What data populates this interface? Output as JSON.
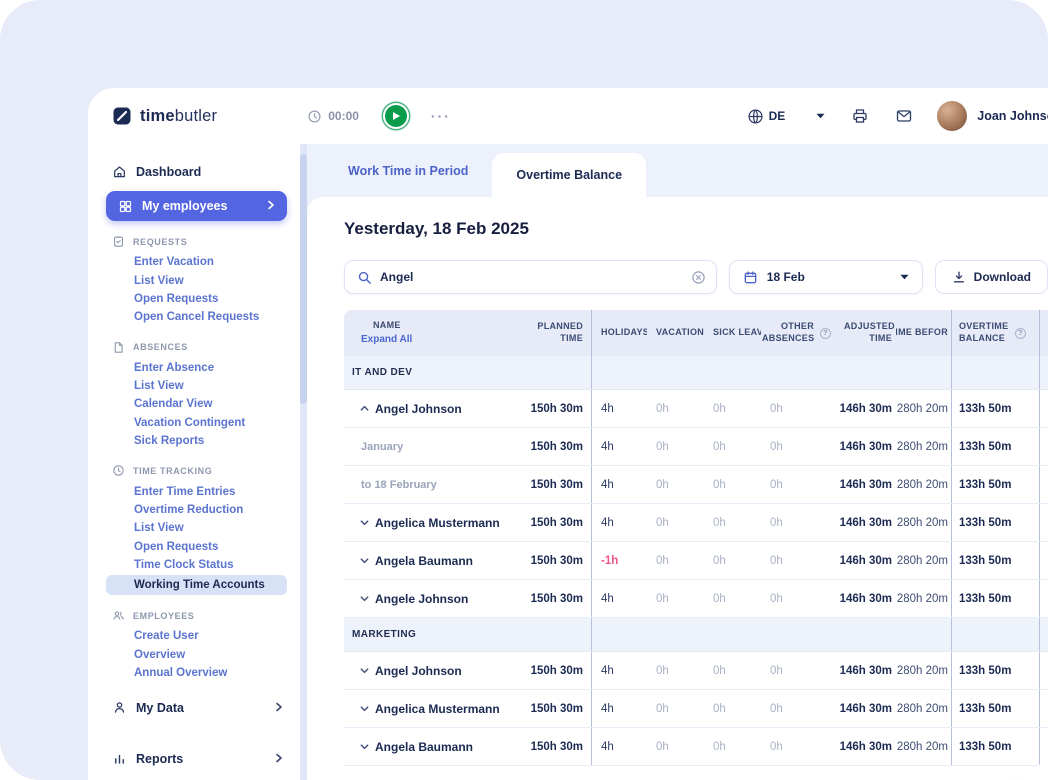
{
  "header": {
    "logo_bold": "time",
    "logo_light": "butler",
    "timer_value": "00:00",
    "more_menu": "···",
    "language": "DE",
    "user_name": "Joan Johnson"
  },
  "sidebar": {
    "dashboard": "Dashboard",
    "my_employees": "My employees",
    "sections": [
      {
        "title": "REQUESTS",
        "icon": "clipboard",
        "links": [
          "Enter Vacation",
          "List View",
          "Open Requests",
          "Open Cancel Requests"
        ]
      },
      {
        "title": "ABSENCES",
        "icon": "document",
        "links": [
          "Enter Absence",
          "List View",
          "Calendar View",
          "Vacation Contingent",
          "Sick Reports"
        ]
      },
      {
        "title": "TIME TRACKING",
        "icon": "clock",
        "links": [
          "Enter Time Entries",
          "Overtime Reduction",
          "List View",
          "Open Requests",
          "Time Clock Status",
          "Working Time Accounts"
        ],
        "active_link": "Working Time Accounts"
      },
      {
        "title": "EMPLOYEES",
        "icon": "people",
        "links": [
          "Create User",
          "Overview",
          "Annual Overview"
        ]
      }
    ],
    "my_data": "My Data",
    "reports": "Reports"
  },
  "tabs": [
    {
      "label": "Work Time in Period",
      "active": false
    },
    {
      "label": "Overtime Balance",
      "active": true
    }
  ],
  "content": {
    "page_title": "Yesterday, 18 Feb 2025",
    "search_value": "Angel",
    "date_filter_value": "18 Feb",
    "download_label": "Download"
  },
  "table": {
    "help_glyph": "?",
    "headers": {
      "name": "NAME",
      "expand_all": "Expand All",
      "planned": "PLANNED TIME",
      "holidays": "HOLIDAYS",
      "vacation": "VACATION",
      "sick": "SICK LEAVE",
      "other": "OTHER ABSENCES",
      "adjusted": "ADJUSTED TIME",
      "before": "TIME BEFOR",
      "overtime": "OVERTIME BALANCE"
    },
    "groups": [
      {
        "label": "IT AND DEV",
        "rows": [
          {
            "name": "Angel Johnson",
            "expanded": true,
            "values": {
              "planned": "150h 30m",
              "holidays": "4h",
              "vacation": "0h",
              "sick": "0h",
              "other": "0h",
              "adjusted": "146h 30m",
              "before": "280h 20m",
              "overtime": "133h 50m"
            },
            "children": [
              {
                "name": "January",
                "values": {
                  "planned": "150h 30m",
                  "holidays": "4h",
                  "vacation": "0h",
                  "sick": "0h",
                  "other": "0h",
                  "adjusted": "146h 30m",
                  "before": "280h 20m",
                  "overtime": "133h 50m"
                }
              },
              {
                "name": "to 18 February",
                "values": {
                  "planned": "150h 30m",
                  "holidays": "4h",
                  "vacation": "0h",
                  "sick": "0h",
                  "other": "0h",
                  "adjusted": "146h 30m",
                  "before": "280h 20m",
                  "overtime": "133h 50m"
                }
              }
            ]
          },
          {
            "name": "Angelica Mustermann",
            "expanded": false,
            "values": {
              "planned": "150h 30m",
              "holidays": "4h",
              "vacation": "0h",
              "sick": "0h",
              "other": "0h",
              "adjusted": "146h 30m",
              "before": "280h 20m",
              "overtime": "133h 50m"
            }
          },
          {
            "name": "Angela Baumann",
            "expanded": false,
            "values": {
              "planned": "150h 30m",
              "holidays": "-1h",
              "vacation": "0h",
              "sick": "0h",
              "other": "0h",
              "adjusted": "146h 30m",
              "before": "280h 20m",
              "overtime": "133h 50m"
            }
          },
          {
            "name": "Angele Johnson",
            "expanded": false,
            "values": {
              "planned": "150h 30m",
              "holidays": "4h",
              "vacation": "0h",
              "sick": "0h",
              "other": "0h",
              "adjusted": "146h 30m",
              "before": "280h 20m",
              "overtime": "133h 50m"
            }
          }
        ]
      },
      {
        "label": "MARKETING",
        "rows": [
          {
            "name": "Angel Johnson",
            "expanded": false,
            "values": {
              "planned": "150h 30m",
              "holidays": "4h",
              "vacation": "0h",
              "sick": "0h",
              "other": "0h",
              "adjusted": "146h 30m",
              "before": "280h 20m",
              "overtime": "133h 50m"
            }
          },
          {
            "name": "Angelica Mustermann",
            "expanded": false,
            "values": {
              "planned": "150h 30m",
              "holidays": "4h",
              "vacation": "0h",
              "sick": "0h",
              "other": "0h",
              "adjusted": "146h 30m",
              "before": "280h 20m",
              "overtime": "133h 50m"
            }
          },
          {
            "name": "Angela Baumann",
            "expanded": false,
            "values": {
              "planned": "150h 30m",
              "holidays": "4h",
              "vacation": "0h",
              "sick": "0h",
              "other": "0h",
              "adjusted": "146h 30m",
              "before": "280h 20m",
              "overtime": "133h 50m"
            }
          }
        ]
      }
    ]
  }
}
